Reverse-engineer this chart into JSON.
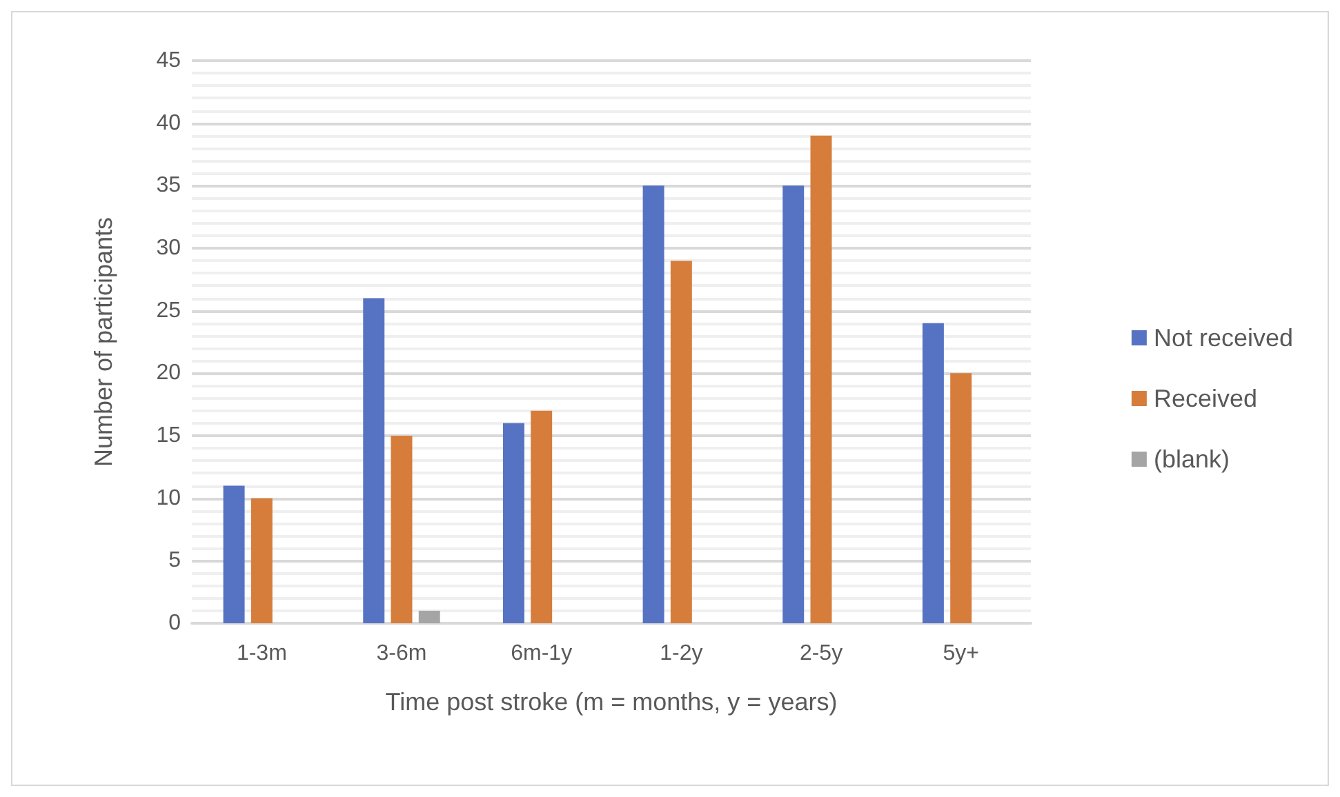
{
  "chart_data": {
    "type": "bar",
    "xlabel": "Time post stroke (m = months, y = years)",
    "ylabel": "Number of participants",
    "categories": [
      "1-3m",
      "3-6m",
      "6m-1y",
      "1-2y",
      "2-5y",
      "5y+"
    ],
    "series": [
      {
        "name": "Not received",
        "color": "#5672c2",
        "values": [
          11,
          26,
          16,
          35,
          35,
          24
        ]
      },
      {
        "name": "Received",
        "color": "#d67d3b",
        "values": [
          10,
          15,
          17,
          29,
          39,
          20
        ]
      },
      {
        "name": "(blank)",
        "color": "#a5a5a5",
        "values": [
          null,
          1,
          null,
          null,
          null,
          null
        ]
      }
    ],
    "ylim": [
      0,
      45
    ],
    "yticks": [
      0,
      5,
      10,
      15,
      20,
      25,
      30,
      35,
      40,
      45
    ],
    "grid": "y",
    "legend": "right"
  }
}
